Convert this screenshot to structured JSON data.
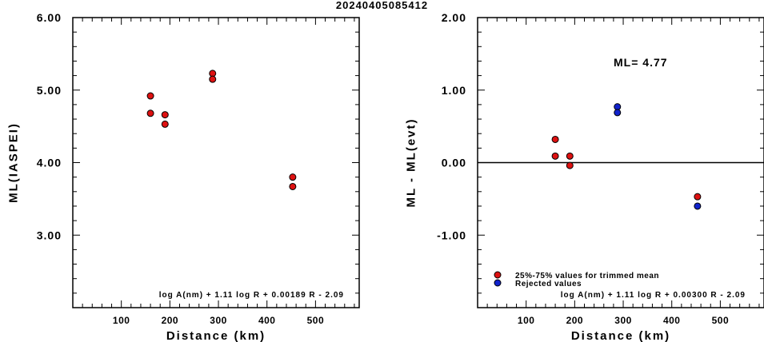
{
  "page": {
    "title": "20240405085412"
  },
  "chart_data": [
    {
      "type": "scatter",
      "title": "",
      "xlabel": "Distance (km)",
      "ylabel": "ML(IASPEI)",
      "xlim": [
        0,
        590
      ],
      "ylim": [
        2.0,
        6.0
      ],
      "xticks": [
        100,
        200,
        300,
        400,
        500
      ],
      "xtick_labels": [
        "100",
        "200",
        "300",
        "400",
        "500"
      ],
      "yticks": [
        3.0,
        4.0,
        5.0,
        6.0
      ],
      "ytick_labels": [
        "3.00",
        "4.00",
        "5.00",
        "6.00"
      ],
      "grid": false,
      "formula": "log A(nm) + 1.11 log R + 0.00189 R - 2.09",
      "series": [
        {
          "color": "#dd1111",
          "x": [
            160,
            160,
            190,
            190,
            288,
            288,
            453,
            453
          ],
          "y": [
            4.92,
            4.68,
            4.66,
            4.53,
            5.23,
            5.15,
            3.8,
            3.67
          ]
        }
      ]
    },
    {
      "type": "scatter",
      "title": "",
      "xlabel": "Distance (km)",
      "ylabel": "ML - ML(evt)",
      "xlim": [
        0,
        590
      ],
      "ylim": [
        -2.0,
        2.0
      ],
      "xticks": [
        100,
        200,
        300,
        400,
        500
      ],
      "xtick_labels": [
        "100",
        "200",
        "300",
        "400",
        "500"
      ],
      "yticks": [
        -1.0,
        0.0,
        1.0,
        2.0
      ],
      "ytick_labels": [
        "-1.00",
        "0.00",
        "1.00",
        "2.00"
      ],
      "grid": false,
      "reference_line": 0.0,
      "annotation": "ML= 4.77",
      "formula": "log A(nm) + 1.11 log R + 0.00300 R - 2.09",
      "legend_position": "bottom-left",
      "series": [
        {
          "name": "25%-75% values for trimmed mean",
          "color": "#dd1111",
          "x": [
            160,
            160,
            190,
            190,
            453
          ],
          "y": [
            0.32,
            0.09,
            0.09,
            -0.04,
            -0.47
          ]
        },
        {
          "name": "Rejected values",
          "color": "#1122cc",
          "x": [
            288,
            288,
            453
          ],
          "y": [
            0.77,
            0.69,
            -0.6
          ]
        }
      ]
    }
  ]
}
